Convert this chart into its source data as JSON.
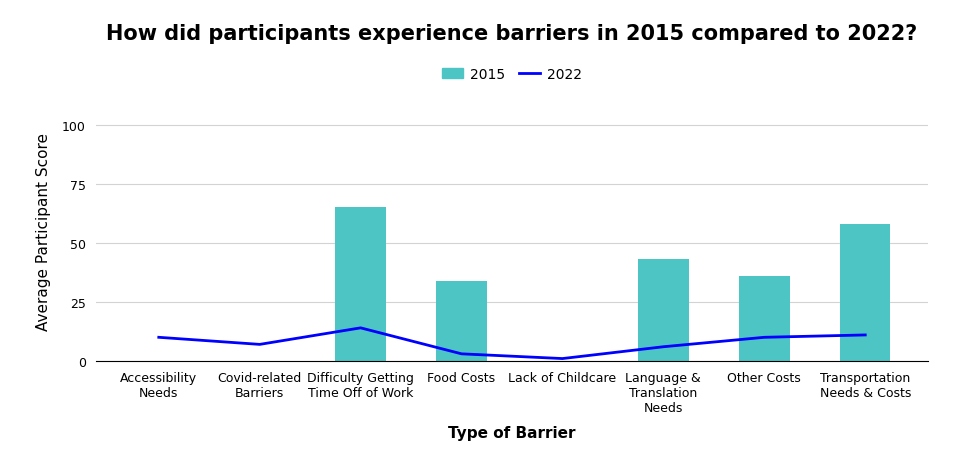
{
  "title": "How did participants experience barriers in 2015 compared to 2022?",
  "xlabel": "Type of Barrier",
  "ylabel": "Average Participant Score",
  "categories": [
    "Accessibility\nNeeds",
    "Covid-related\nBarriers",
    "Difficulty Getting\nTime Off of Work",
    "Food Costs",
    "Lack of Childcare",
    "Language &\nTranslation\nNeeds",
    "Other Costs",
    "Transportation\nNeeds & Costs"
  ],
  "bar_values_2015": [
    0,
    0,
    65,
    34,
    0,
    43,
    36,
    58
  ],
  "line_values_2022": [
    10,
    7,
    14,
    3,
    1,
    6,
    10,
    11
  ],
  "bar_color": "#4DC5C5",
  "line_color": "#0000FF",
  "ylim": [
    0,
    110
  ],
  "yticks": [
    0,
    25,
    50,
    75,
    100
  ],
  "background_color": "#FFFFFF",
  "title_fontsize": 15,
  "axis_label_fontsize": 11,
  "tick_fontsize": 9,
  "legend_labels": [
    "2015",
    "2022"
  ]
}
